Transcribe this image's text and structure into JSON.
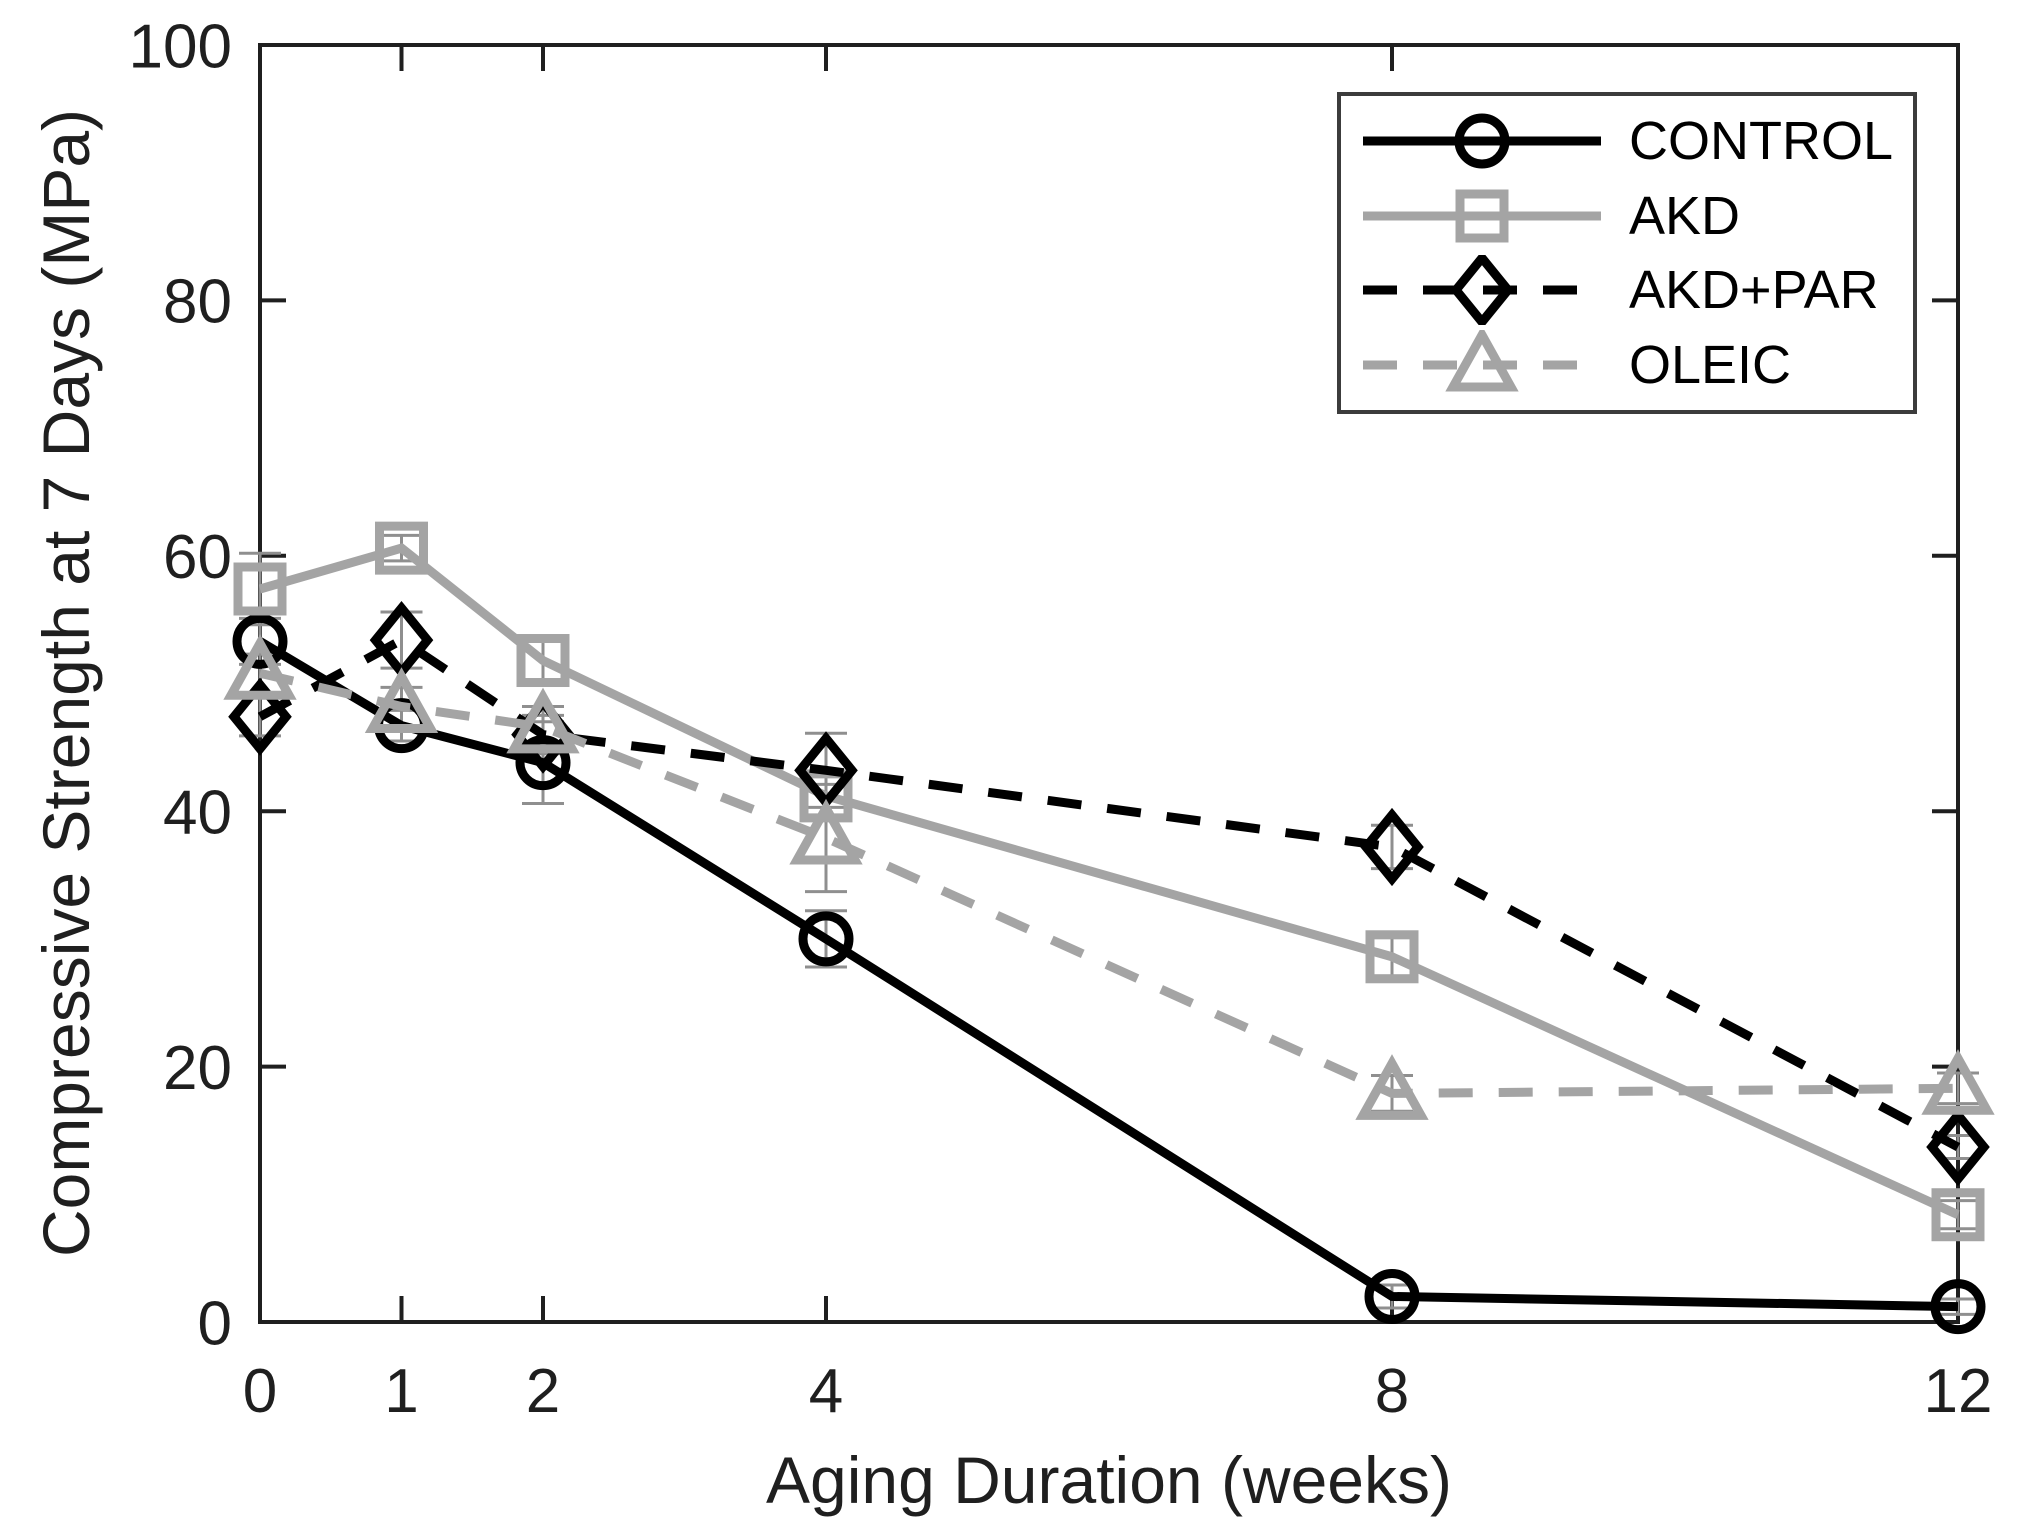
{
  "figure": {
    "background": "#ffffff"
  },
  "chart_data": {
    "type": "line",
    "title": "",
    "xlabel": "Aging Duration (weeks)",
    "ylabel": "Compressive Strength at 7 Days (MPa)",
    "x": [
      0,
      1,
      2,
      4,
      8,
      12
    ],
    "xlim": [
      0,
      12
    ],
    "ylim": [
      0,
      100
    ],
    "xticks": [
      0,
      1,
      2,
      4,
      8,
      12
    ],
    "yticks": [
      0,
      20,
      40,
      60,
      80,
      100
    ],
    "grid": false,
    "legend_position": "top-right",
    "axis_color": "#1f1f1f",
    "errorbar_color": "#8f8f8f",
    "series": [
      {
        "name": "CONTROL",
        "color": "#000000",
        "line_style": "solid",
        "marker": "circle",
        "values": [
          53.3,
          46.7,
          43.8,
          30.0,
          2.0,
          1.2
        ],
        "errors": [
          1.8,
          1.2,
          3.2,
          2.2,
          0.9,
          0.6
        ]
      },
      {
        "name": "AKD",
        "color": "#a4a4a4",
        "line_style": "solid",
        "marker": "square",
        "values": [
          57.4,
          60.6,
          51.8,
          41.2,
          28.6,
          8.4
        ],
        "errors": [
          2.8,
          1.0,
          1.6,
          1.6,
          1.5,
          1.1
        ]
      },
      {
        "name": "AKD+PAR",
        "color": "#000000",
        "line_style": "dashed",
        "marker": "diamond",
        "values": [
          47.4,
          53.4,
          46.0,
          43.2,
          37.2,
          13.7
        ],
        "errors": [
          1.5,
          2.2,
          1.5,
          2.9,
          1.7,
          0.9
        ]
      },
      {
        "name": "OLEIC",
        "color": "#a4a4a4",
        "line_style": "dashed",
        "marker": "triangle",
        "values": [
          50.8,
          48.2,
          46.6,
          37.9,
          17.9,
          18.3
        ],
        "errors": [
          1.5,
          1.5,
          1.6,
          4.2,
          1.4,
          1.2
        ]
      }
    ]
  }
}
